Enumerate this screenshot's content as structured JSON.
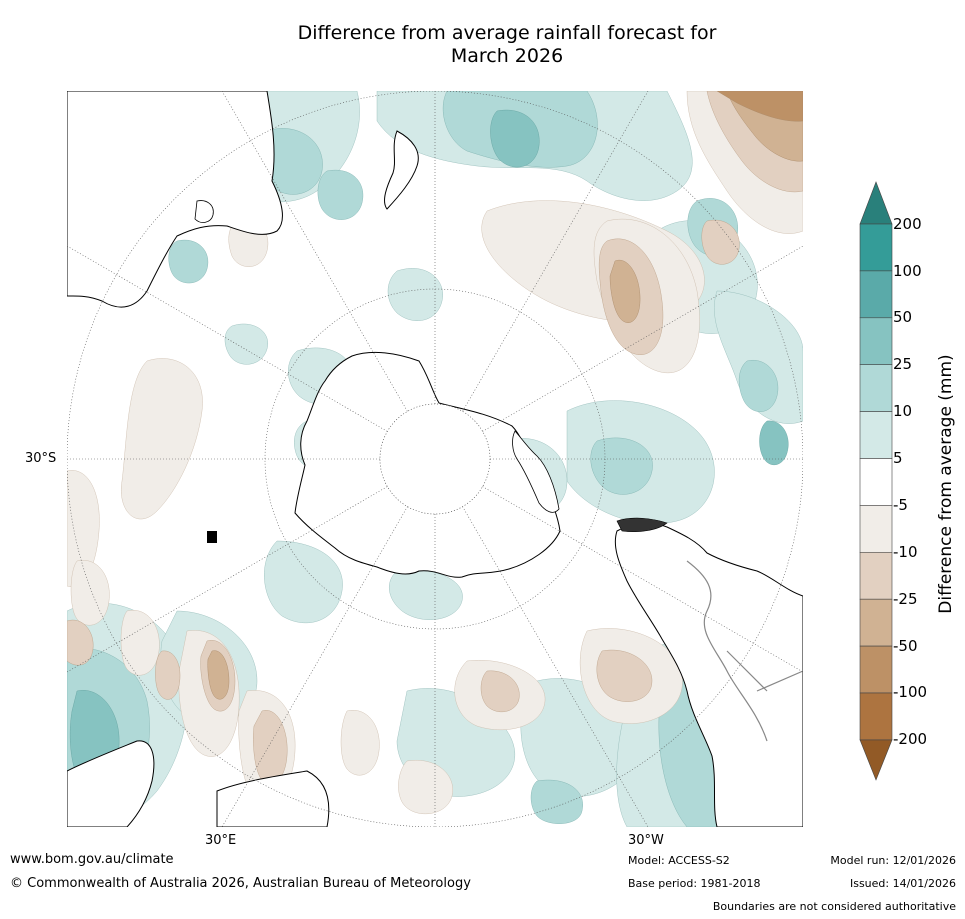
{
  "title_line1": "Difference from average rainfall forecast for",
  "title_line2": "March 2026",
  "axis_labels": {
    "lat": "30°S",
    "lon_east": "30°E",
    "lon_west": "30°W"
  },
  "colorbar": {
    "title": "Difference from average (mm)",
    "ticks": [
      "200",
      "100",
      "50",
      "25",
      "10",
      "5",
      "-5",
      "-10",
      "-25",
      "-50",
      "-100",
      "-200"
    ],
    "colors": [
      "#29807b",
      "#349c98",
      "#5aaaa9",
      "#86c3c1",
      "#b0d9d7",
      "#d3e9e7",
      "#ffffff",
      "#f1ede8",
      "#e2d0c1",
      "#d0b293",
      "#bd9166",
      "#ad7440",
      "#925a26"
    ]
  },
  "footer": {
    "website": "www.bom.gov.au/climate",
    "copyright": "© Commonwealth of Australia 2026, Australian Bureau of Meteorology",
    "model": "Model: ACCESS-S2",
    "base_period": "Base period: 1981-2018",
    "model_run": "Model run: 12/01/2026",
    "issued": "Issued: 14/01/2026",
    "disclaimer": "Boundaries are not considered authoritative"
  }
}
